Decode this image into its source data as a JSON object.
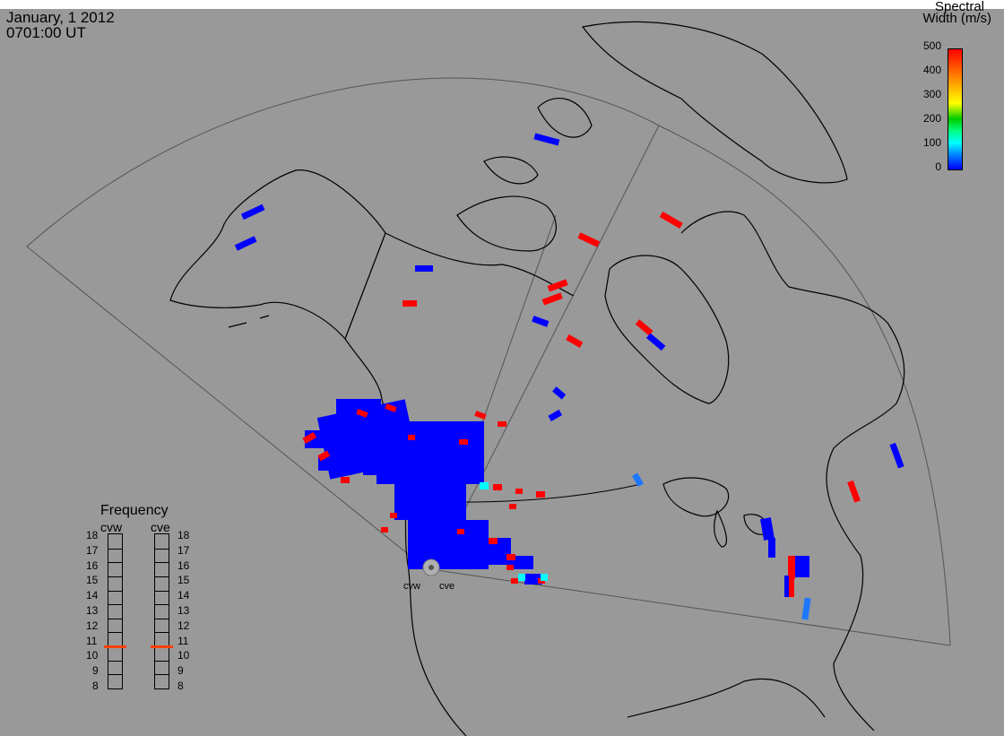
{
  "header": {
    "date": "January, 1 2012",
    "time": "0701:00 UT"
  },
  "colorbar": {
    "title_line1": "Spectral",
    "title_line2": "Width (m/s)",
    "ticks": [
      "500",
      "400",
      "300",
      "200",
      "100",
      "0"
    ],
    "colors": [
      "#0000ff",
      "#007fff",
      "#00ffff",
      "#00cc00",
      "#ffff00",
      "#ffaa00",
      "#ff0000"
    ]
  },
  "frequency_panel": {
    "title": "Frequency",
    "radar1": "cvw",
    "radar2": "cve",
    "scale": [
      "18",
      "17",
      "16",
      "15",
      "14",
      "13",
      "12",
      "11",
      "10",
      "9",
      "8"
    ],
    "cvw_freq": 10.6,
    "cve_freq": 10.6
  },
  "radars": {
    "west": "cvw",
    "east": "cve"
  },
  "colors": {
    "background": "#999999",
    "land_outline": "#000000",
    "fov_outline": "#555555",
    "low_width": "#0000ff",
    "high_width": "#ff0000",
    "mid_width": "#1e78ff",
    "freq_marker": "#ff4000"
  }
}
